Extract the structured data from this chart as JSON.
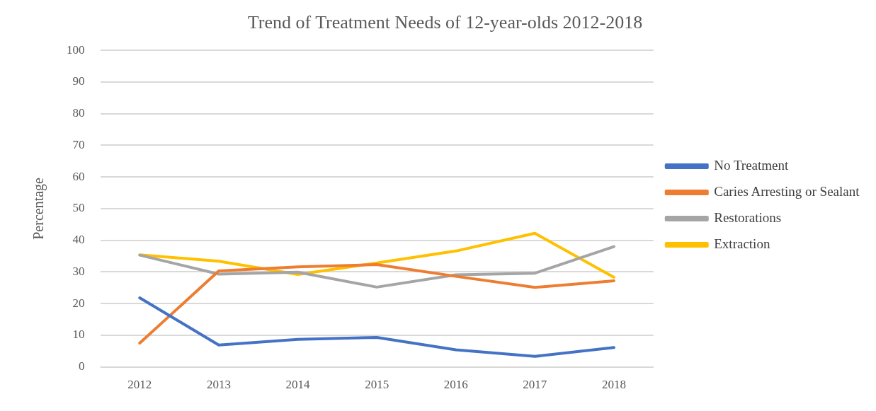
{
  "chart_data": {
    "type": "line",
    "title": "Trend of Treatment Needs of 12-year-olds 2012-2018",
    "ylabel": "Percentage",
    "categories": [
      "2012",
      "2013",
      "2014",
      "2015",
      "2016",
      "2017",
      "2018"
    ],
    "series": [
      {
        "name": "No Treatment",
        "color": "#4472c4",
        "values": [
          21.8,
          6.9,
          8.7,
          9.3,
          5.4,
          3.3,
          6.1
        ]
      },
      {
        "name": "Caries Arresting or Sealant",
        "color": "#ed7d31",
        "values": [
          7.5,
          30.3,
          31.6,
          32.3,
          28.6,
          25.1,
          27.2
        ]
      },
      {
        "name": "Restorations",
        "color": "#a5a5a5",
        "values": [
          35.3,
          29.3,
          29.9,
          25.2,
          29.1,
          29.6,
          38
        ]
      },
      {
        "name": "Extraction",
        "color": "#ffc000",
        "values": [
          35.4,
          33.4,
          29.2,
          32.8,
          36.6,
          42.2,
          28.3
        ]
      }
    ],
    "ylim": [
      0,
      100
    ],
    "yticks": [
      0,
      10,
      20,
      30,
      40,
      50,
      60,
      70,
      80,
      90,
      100
    ],
    "grid": "y",
    "legend": "right",
    "marker": "none",
    "line_style": "solid"
  }
}
